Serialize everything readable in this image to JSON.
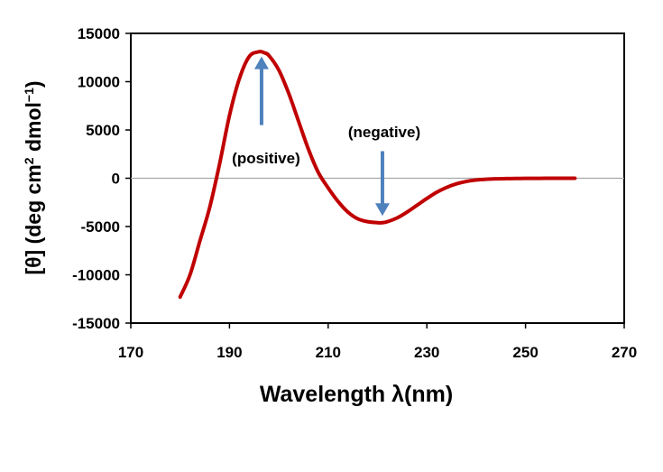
{
  "chart_data": {
    "type": "line",
    "xlabel": "Wavelength  λ(nm)",
    "ylabel_main": "[θ]  (deg cm",
    "ylabel_sup1": "2",
    "ylabel_mid": " dmol",
    "ylabel_sup2": "−1",
    "ylabel_end": ")",
    "xlim": [
      170,
      270
    ],
    "ylim": [
      -15000,
      15000
    ],
    "xticks": [
      "170",
      "190",
      "210",
      "230",
      "250",
      "270"
    ],
    "yticks": [
      "15000",
      "10000",
      "5000",
      "0",
      "-5000",
      "-10000",
      "-15000"
    ],
    "grid": false,
    "zero_line": true,
    "series": [
      {
        "color": "#c00000",
        "x": [
          180,
          182,
          184,
          186,
          188,
          190,
          192,
          194,
          196,
          197,
          198,
          200,
          202,
          204,
          206,
          208,
          210,
          212,
          214,
          216,
          218,
          220,
          221,
          222,
          224,
          226,
          228,
          230,
          232,
          234,
          236,
          238,
          240,
          242,
          244,
          246,
          248,
          250,
          252,
          254,
          256,
          258,
          260
        ],
        "y": [
          -12300,
          -10000,
          -6500,
          -3000,
          1500,
          6500,
          10300,
          12600,
          13100,
          13000,
          12700,
          11200,
          8800,
          5900,
          3000,
          600,
          -1000,
          -2400,
          -3500,
          -4200,
          -4500,
          -4600,
          -4600,
          -4500,
          -4100,
          -3500,
          -2800,
          -2100,
          -1450,
          -950,
          -580,
          -330,
          -180,
          -100,
          -60,
          -40,
          -25,
          -15,
          -10,
          -5,
          -3,
          0,
          0
        ]
      }
    ],
    "annotations": [
      {
        "text": "(positive)",
        "arrow_x": 196.5,
        "arrow_y_from": 5500,
        "arrow_y_to": 12600
      },
      {
        "text": "(negative)",
        "arrow_x": 221,
        "arrow_y_from": 2800,
        "arrow_y_to": -3900
      }
    ],
    "arrow_color": "#4f81bd"
  }
}
